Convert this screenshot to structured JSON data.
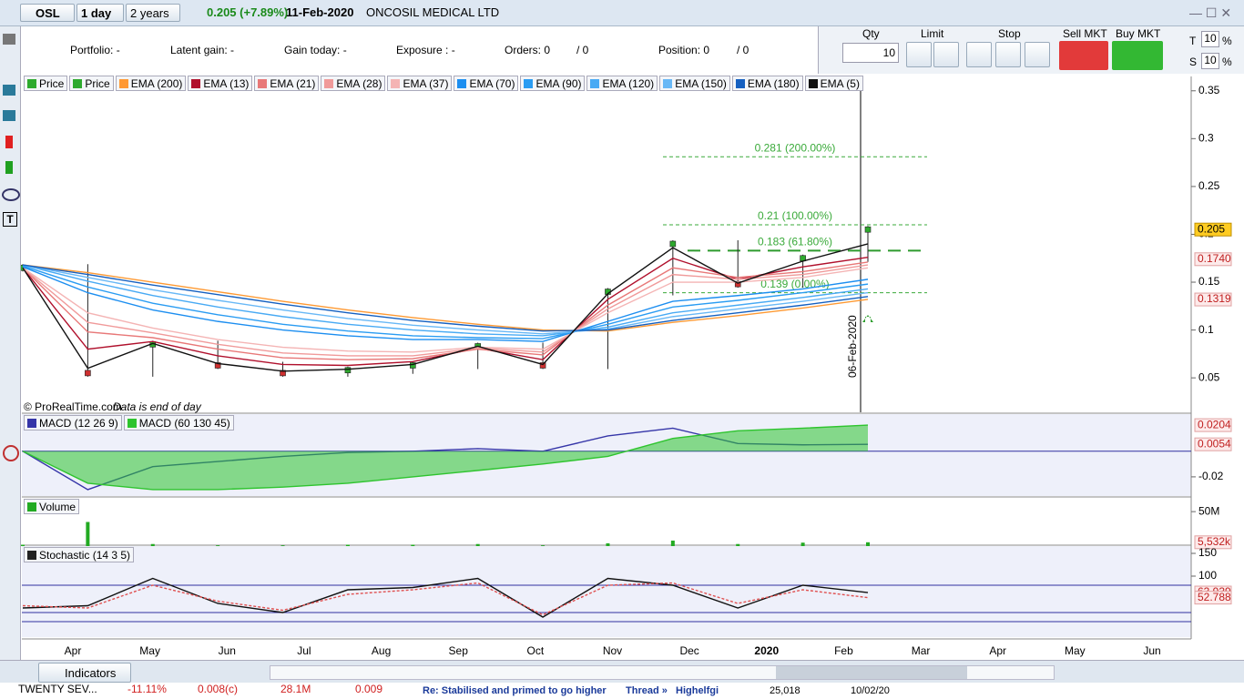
{
  "toolbar": {
    "symbol": "OSL",
    "interval": "1 day",
    "period": "2 years",
    "quote": "0.205 (+7.89%)",
    "date": "11-Feb-2020",
    "name": "ONCOSIL MEDICAL LTD"
  },
  "account": {
    "portfolio": "Portfolio: -",
    "latent_gain": "Latent gain: -",
    "gain_today": "Gain today: -",
    "exposure": "Exposure : -",
    "orders": "Orders: 0",
    "orders_total": "/ 0",
    "position": "Position: 0",
    "position_total": "/ 0"
  },
  "order_panel": {
    "qty_label": "Qty",
    "qty": "10",
    "limit": "Limit",
    "stop": "Stop",
    "sell": "Sell MKT",
    "buy": "Buy MKT",
    "t": "T",
    "t_value": "10",
    "t_unit": "%",
    "s": "S",
    "s_value": "10",
    "s_unit": "%"
  },
  "chart_data": [
    {
      "type": "line",
      "series": [
        {
          "name": "Price",
          "color": "#2eaa2e",
          "style": "candlestick",
          "values": [
            0.165,
            0.055,
            0.085,
            0.063,
            0.055,
            0.058,
            0.063,
            0.083,
            0.063,
            0.14,
            0.19,
            0.148,
            0.175,
            0.205
          ]
        },
        {
          "name": "Price",
          "color": "#2eaa2e"
        },
        {
          "name": "EMA (200)",
          "color": "#ff9933",
          "values": [
            0.168,
            0.16,
            0.15,
            0.14,
            0.13,
            0.121,
            0.113,
            0.106,
            0.1,
            0.099,
            0.108,
            0.115,
            0.123,
            0.132
          ]
        },
        {
          "name": "EMA (13)",
          "color": "#b0102c",
          "values": [
            0.165,
            0.08,
            0.088,
            0.073,
            0.064,
            0.063,
            0.067,
            0.081,
            0.069,
            0.132,
            0.175,
            0.153,
            0.166,
            0.176
          ]
        },
        {
          "name": "EMA (21)",
          "color": "#e87878",
          "values": [
            0.165,
            0.098,
            0.092,
            0.08,
            0.071,
            0.069,
            0.07,
            0.08,
            0.074,
            0.126,
            0.165,
            0.155,
            0.161,
            0.171
          ]
        },
        {
          "name": "EMA (28)",
          "color": "#f09a9a",
          "values": [
            0.165,
            0.108,
            0.097,
            0.085,
            0.076,
            0.073,
            0.073,
            0.081,
            0.077,
            0.122,
            0.158,
            0.153,
            0.158,
            0.168
          ]
        },
        {
          "name": "EMA (37)",
          "color": "#f4b4b4",
          "values": [
            0.165,
            0.118,
            0.102,
            0.09,
            0.082,
            0.078,
            0.077,
            0.082,
            0.08,
            0.118,
            0.15,
            0.15,
            0.155,
            0.165
          ]
        },
        {
          "name": "EMA (70)",
          "color": "#1c8ef0",
          "values": [
            0.166,
            0.139,
            0.121,
            0.109,
            0.1,
            0.094,
            0.09,
            0.09,
            0.088,
            0.109,
            0.13,
            0.136,
            0.143,
            0.153
          ]
        },
        {
          "name": "EMA (90)",
          "color": "#2a9cf2",
          "values": [
            0.167,
            0.145,
            0.128,
            0.116,
            0.106,
            0.099,
            0.094,
            0.092,
            0.091,
            0.106,
            0.124,
            0.131,
            0.139,
            0.148
          ]
        },
        {
          "name": "EMA (120)",
          "color": "#48aaf4",
          "values": [
            0.168,
            0.151,
            0.136,
            0.124,
            0.114,
            0.106,
            0.1,
            0.096,
            0.094,
            0.103,
            0.118,
            0.126,
            0.134,
            0.143
          ]
        },
        {
          "name": "EMA (150)",
          "color": "#68b8f6",
          "values": [
            0.168,
            0.155,
            0.142,
            0.131,
            0.121,
            0.112,
            0.105,
            0.1,
            0.096,
            0.101,
            0.114,
            0.122,
            0.13,
            0.139
          ]
        },
        {
          "name": "EMA (180)",
          "color": "#1560c0",
          "values": [
            0.168,
            0.158,
            0.147,
            0.137,
            0.127,
            0.118,
            0.11,
            0.104,
            0.099,
            0.1,
            0.11,
            0.118,
            0.126,
            0.135
          ]
        },
        {
          "name": "EMA (5)",
          "color": "#111111",
          "values": [
            0.165,
            0.06,
            0.086,
            0.065,
            0.057,
            0.059,
            0.064,
            0.083,
            0.064,
            0.138,
            0.186,
            0.149,
            0.172,
            0.19
          ]
        }
      ],
      "ylim": [
        0.014,
        0.365
      ],
      "yticks": [
        0.05,
        0.1,
        0.15,
        0.2,
        0.25,
        0.3,
        0.35
      ],
      "levels": [
        {
          "value": 0.281,
          "label": "0.281 (200.00%)"
        },
        {
          "value": 0.21,
          "label": "0.21 (100.00%)"
        },
        {
          "value": 0.183,
          "label": "0.183 (61.80%)"
        },
        {
          "value": 0.139,
          "label": "0.139 (0.00%)"
        }
      ],
      "level_color": "#3aaa3a",
      "last_values": [
        0.205,
        {
          "value": 0.174,
          "label": "0.1740"
        },
        0.1319
      ],
      "marker_label": "06-Feb-2020",
      "credit": "© ProRealTime.com",
      "note": "Data is end of day"
    },
    {
      "type": "line",
      "series": [
        {
          "name": "MACD (12 26 9)",
          "color": "#3535a8",
          "values": [
            0,
            -0.03,
            -0.012,
            -0.008,
            -0.004,
            -0.001,
            0,
            0.002,
            0,
            0.012,
            0.018,
            0.006,
            0.005,
            0.0054
          ]
        },
        {
          "name": "MACD (60 130 45)",
          "color": "#2ec42e",
          "style": "area",
          "values": [
            0,
            -0.025,
            -0.03,
            -0.03,
            -0.028,
            -0.025,
            -0.02,
            -0.015,
            -0.01,
            -0.004,
            0.01,
            0.016,
            0.018,
            0.0204
          ]
        }
      ],
      "ylim": [
        -0.035,
        0.029
      ],
      "yticks": [
        -0.02
      ],
      "last_values": [
        0.0204,
        0.0054
      ]
    },
    {
      "type": "bar",
      "title": "Volume",
      "color": "#22aa22",
      "values": [
        2000000,
        35000000,
        3000000,
        1000000,
        1000000,
        2000000,
        2000000,
        3000000,
        1000000,
        4000000,
        8000000,
        3000000,
        5000000,
        5532000
      ],
      "ylim": [
        0,
        70000000
      ],
      "yticks": [
        {
          "value": 50000000,
          "label": "50M"
        }
      ],
      "last_values": [
        {
          "value": 5532000,
          "label": "5,532k"
        }
      ]
    },
    {
      "type": "line",
      "title": "Stochastic (14 3 5)",
      "series": [
        {
          "color": "#111111",
          "values": [
            30,
            35,
            95,
            40,
            20,
            70,
            75,
            95,
            10,
            95,
            80,
            30,
            80,
            63.939
          ]
        },
        {
          "color": "#e05050",
          "style": "dashed",
          "values": [
            35,
            30,
            80,
            45,
            25,
            60,
            70,
            85,
            15,
            80,
            85,
            40,
            70,
            52.788
          ]
        }
      ],
      "bands": [
        20,
        80
      ],
      "ylim": [
        -34,
        166
      ],
      "yticks": [
        100,
        150
      ],
      "last_values": [
        63.939,
        52.788
      ],
      "x_labels": [
        "Apr",
        "May",
        "Jun",
        "Jul",
        "Aug",
        "Sep",
        "Oct",
        "Nov",
        "Dec",
        "2020",
        "Feb",
        "Mar",
        "Apr",
        "May",
        "Jun"
      ]
    }
  ],
  "footer": {
    "indicators": "Indicators",
    "ticker": [
      "TWENTY SEV...",
      "-11.11%",
      "0.008(c)",
      "28.1M",
      "0.009"
    ],
    "forum": [
      "Re: Stabilised and primed to go higher",
      "Thread »",
      "Highelfgi",
      "25,018",
      "10/02/20"
    ]
  }
}
